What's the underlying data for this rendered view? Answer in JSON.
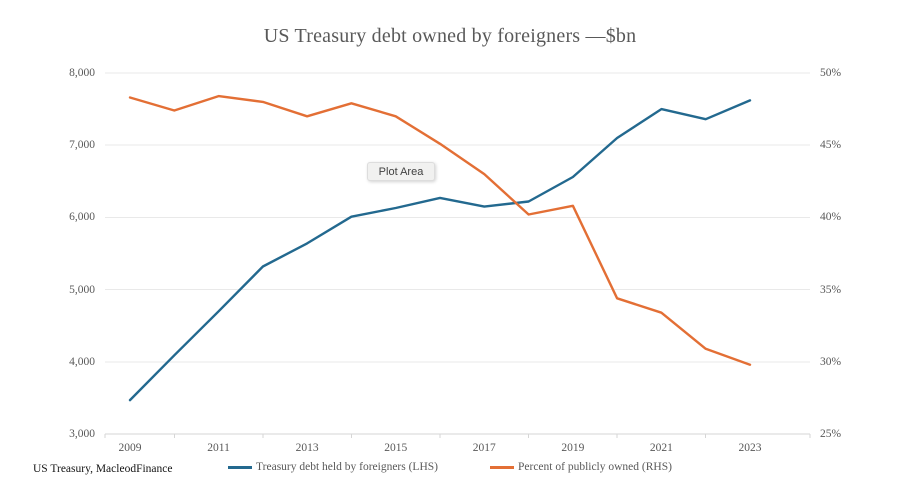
{
  "tooltip": {
    "label": "Plot Area"
  },
  "footer": {
    "source": "US Treasury, MacleodFinance"
  },
  "colors": {
    "title_text": "#595959",
    "axis_text": "#595959",
    "grid_line": "#e9e9e9",
    "axis_line": "#d6d6d6",
    "lhs_line": "#23698f",
    "rhs_line": "#e36f35",
    "tooltip_bg": "#f1f1f0",
    "tooltip_text": "#414141"
  },
  "chart_data": {
    "type": "line",
    "title": "US Treasury debt owned by foreigners —$bn",
    "x": [
      2009,
      2010,
      2011,
      2012,
      2013,
      2014,
      2015,
      2016,
      2017,
      2018,
      2019,
      2020,
      2021,
      2022,
      2023
    ],
    "x_tick_labels": [
      "2009",
      "2011",
      "2013",
      "2015",
      "2017",
      "2019",
      "2021",
      "2023"
    ],
    "series": [
      {
        "name": "Treasury debt held by foreigners (LHS)",
        "axis": "left",
        "color": "#23698f",
        "values": [
          3470,
          4090,
          4700,
          5320,
          5640,
          6010,
          6130,
          6270,
          6150,
          6220,
          6560,
          7100,
          7500,
          7360,
          7620
        ]
      },
      {
        "name": "Percent of publicly owned (RHS)",
        "axis": "right",
        "color": "#e36f35",
        "values": [
          48.3,
          47.4,
          48.4,
          48.0,
          47.0,
          47.9,
          47.0,
          45.1,
          43.0,
          40.2,
          40.8,
          34.4,
          33.4,
          30.9,
          29.8
        ]
      }
    ],
    "left_axis": {
      "ticks": [
        "8,000",
        "7,000",
        "6,000",
        "5,000",
        "4,000",
        "3,000"
      ],
      "min": 3000,
      "max": 8000
    },
    "right_axis": {
      "ticks": [
        "50%",
        "45%",
        "40%",
        "35%",
        "30%",
        "25%"
      ],
      "min": 25,
      "max": 50
    },
    "grid": true,
    "legend_position": "bottom"
  }
}
